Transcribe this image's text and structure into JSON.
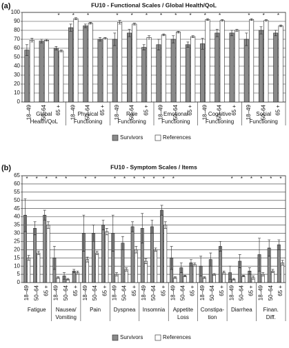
{
  "chart_data": [
    {
      "type": "bar",
      "panel": "(a)",
      "title": "FU10 - Functional Scales / Global Health/QoL",
      "ylim": [
        0,
        100
      ],
      "yticks": [
        0,
        10,
        20,
        30,
        40,
        50,
        60,
        70,
        80,
        90,
        100
      ],
      "grid": true,
      "marker": "*",
      "groups": [
        {
          "name": [
            "Global",
            "Health/QoL"
          ],
          "categories": [
            "18–49",
            "50–64",
            "65 +"
          ]
        },
        {
          "name": [
            "Physical",
            "Functioning"
          ],
          "categories": [
            "18–49",
            "50–64",
            "65 +"
          ]
        },
        {
          "name": [
            "Role",
            "Functioning"
          ],
          "categories": [
            "18–49",
            "50–64",
            "65 +"
          ]
        },
        {
          "name": [
            "Emotional",
            "Functioning"
          ],
          "categories": [
            "18–49",
            "50–64",
            "65 +"
          ]
        },
        {
          "name": [
            "Cognitive",
            "Functioning"
          ],
          "categories": [
            "18–49",
            "50–64",
            "65 +"
          ]
        },
        {
          "name": [
            "Social",
            "Functioning"
          ],
          "categories": [
            "18–49",
            "50–64",
            "65 +"
          ]
        }
      ],
      "significant": [
        [
          false,
          false,
          true
        ],
        [
          true,
          true,
          false
        ],
        [
          true,
          true,
          true
        ],
        [
          true,
          true,
          true
        ],
        [
          true,
          true,
          false
        ],
        [
          true,
          true,
          true
        ]
      ],
      "series": [
        {
          "name": "Survivors",
          "color": "#8a8a8a",
          "values": [
            [
              58,
              68,
              60
            ],
            [
              83,
              85,
              70
            ],
            [
              70,
              77,
              61
            ],
            [
              64,
              70,
              64
            ],
            [
              65,
              77,
              77
            ],
            [
              70,
              80,
              77
            ]
          ],
          "errors": [
            [
              6,
              2,
              2
            ],
            [
              4,
              2,
              2
            ],
            [
              7,
              4,
              3
            ],
            [
              6,
              4,
              3
            ],
            [
              6,
              4,
              3
            ],
            [
              7,
              4,
              3
            ]
          ]
        },
        {
          "name": "References",
          "color": "#ffffff",
          "values": [
            [
              69,
              69,
              57
            ],
            [
              93,
              88,
              71
            ],
            [
              89,
              87,
              72
            ],
            [
              75,
              78,
              73
            ],
            [
              92,
              91,
              80
            ],
            [
              92,
              91,
              85
            ]
          ],
          "errors": [
            [
              2,
              1,
              1
            ],
            [
              1,
              1,
              1
            ],
            [
              2,
              1,
              2
            ],
            [
              1,
              1,
              1
            ],
            [
              1,
              1,
              1
            ],
            [
              1,
              1,
              1
            ]
          ]
        }
      ]
    },
    {
      "type": "bar",
      "panel": "(b)",
      "title": "FU10 - Symptom Scales / Items",
      "ylim": [
        0,
        65
      ],
      "yticks": [
        0,
        5,
        10,
        15,
        20,
        25,
        30,
        35,
        40,
        45,
        50,
        55,
        60,
        65
      ],
      "grid": true,
      "marker": "*",
      "groups": [
        {
          "name": [
            "Fatigue"
          ],
          "categories": [
            "18–49",
            "50–64",
            "65 +"
          ]
        },
        {
          "name": [
            "Nausea/",
            "Vomiting"
          ],
          "categories": [
            "18–49",
            "50–64",
            "65 +"
          ]
        },
        {
          "name": [
            "Pain"
          ],
          "categories": [
            "18–49",
            "50–64",
            "65 +"
          ]
        },
        {
          "name": [
            "Dyspnea"
          ],
          "categories": [
            "18–49",
            "50–64",
            "65 +"
          ]
        },
        {
          "name": [
            "Insomnia"
          ],
          "categories": [
            "18–49",
            "50–64",
            "65 +"
          ]
        },
        {
          "name": [
            "Appetite",
            "Loss"
          ],
          "categories": [
            "18–49",
            "50–64",
            "65 +"
          ]
        },
        {
          "name": [
            "Constipa-",
            "tion"
          ],
          "categories": [
            "18–49",
            "50–64",
            "65 +"
          ]
        },
        {
          "name": [
            "Diarrhea"
          ],
          "categories": [
            "18–49",
            "50–64",
            "65 +"
          ]
        },
        {
          "name": [
            "Finan.",
            "Diff."
          ],
          "categories": [
            "18–49",
            "50–64",
            "65 +"
          ]
        }
      ],
      "significant": [
        [
          true,
          true,
          true
        ],
        [
          true,
          true,
          false
        ],
        [
          true,
          true,
          false
        ],
        [
          true,
          true,
          true
        ],
        [
          true,
          true,
          true
        ],
        [
          true,
          false,
          false
        ],
        [
          false,
          false,
          false
        ],
        [
          true,
          true,
          true
        ],
        [
          true,
          true,
          true
        ]
      ],
      "series": [
        {
          "name": "Survivors",
          "color": "#8a8a8a",
          "values": [
            [
              41,
              33,
              41
            ],
            [
              15,
              4,
              7
            ],
            [
              30,
              30,
              35
            ],
            [
              30,
              24,
              34
            ],
            [
              33,
              34,
              44
            ],
            [
              15,
              9,
              12
            ],
            [
              10,
              14,
              22
            ],
            [
              6,
              13,
              7
            ],
            [
              17,
              21,
              23
            ]
          ],
          "errors": [
            [
              10,
              4,
              3
            ],
            [
              7,
              2,
              1
            ],
            [
              11,
              5,
              3
            ],
            [
              11,
              4,
              3
            ],
            [
              9,
              4,
              3
            ],
            [
              7,
              3,
              2
            ],
            [
              6,
              4,
              3
            ],
            [
              4,
              4,
              2
            ],
            [
              10,
              5,
              3
            ]
          ]
        },
        {
          "name": "References",
          "color": "#ffffff",
          "values": [
            [
              15,
              18,
              35
            ],
            [
              3,
              2,
              6
            ],
            [
              14,
              18,
              31
            ],
            [
              5,
              8,
              20
            ],
            [
              13,
              20,
              35
            ],
            [
              3,
              4,
              11
            ],
            [
              3,
              5,
              6
            ],
            [
              2,
              4,
              3
            ],
            [
              5,
              7,
              12
            ]
          ],
          "errors": [
            [
              1.5,
              1,
              2
            ],
            [
              0.5,
              0.5,
              1
            ],
            [
              1.5,
              1,
              2
            ],
            [
              1,
              1,
              2
            ],
            [
              1.5,
              1,
              2
            ],
            [
              0.5,
              0.5,
              1
            ],
            [
              0.5,
              0.5,
              1
            ],
            [
              0.5,
              0.5,
              1
            ],
            [
              1,
              1,
              1.5
            ]
          ]
        }
      ]
    }
  ]
}
